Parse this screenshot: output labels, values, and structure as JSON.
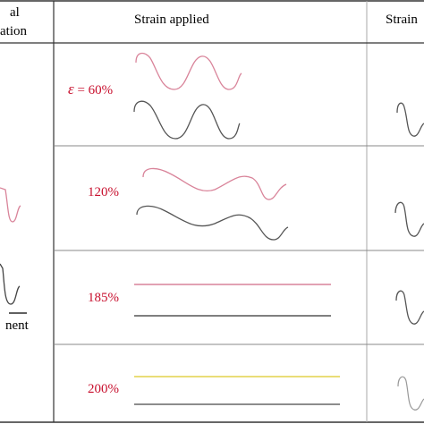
{
  "header": {
    "col1_line1": "al",
    "col1_line2": "ation",
    "col2": "Strain applied",
    "col3": "Strain"
  },
  "left_label": "nent",
  "strain_symbol": "ε",
  "rows": [
    {
      "eq": "= ",
      "value": "60%"
    },
    {
      "eq": "",
      "value": "120%"
    },
    {
      "eq": "",
      "value": "185%"
    },
    {
      "eq": "",
      "value": "200%"
    }
  ],
  "colors": {
    "red_label": "#c8102e",
    "top_wire": "#d9849a",
    "bottom_wire": "#555555",
    "yellow_wire": "#e3d24a",
    "grid": "#333333",
    "thin_grid": "#999999"
  }
}
